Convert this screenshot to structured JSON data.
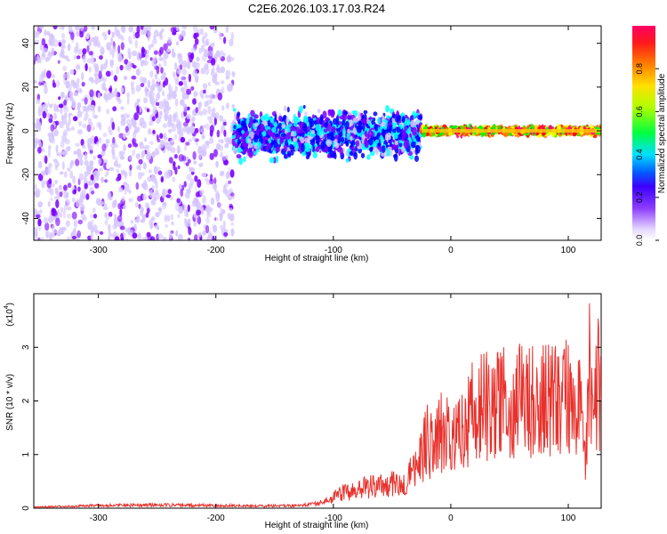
{
  "figure": {
    "title": "C2E6.2026.103.17.03.R24"
  },
  "chart_data": [
    {
      "type": "heatmap",
      "name": "spectrogram",
      "title": "C2E6.2026.103.17.03.R24",
      "xlabel": "Height of straight line (km)",
      "ylabel": "Frequency (Hz)",
      "xlim": [
        -355,
        128
      ],
      "ylim": [
        -50,
        48
      ],
      "xticks": [
        -300,
        -200,
        -100,
        0,
        100
      ],
      "yticks": [
        -40,
        -20,
        0,
        20,
        40
      ],
      "colorbar": {
        "label": "Normalized spectral amplitude",
        "range": [
          0,
          1
        ],
        "ticks": [
          0.0,
          0.2,
          0.4,
          0.6,
          0.8
        ],
        "colormap": [
          "#ffffff",
          "#d6c7ff",
          "#7a00ff",
          "#0000ff",
          "#00ffff",
          "#00ff00",
          "#ffff00",
          "#ff8000",
          "#ff0000",
          "#ff0080"
        ]
      },
      "description_regions": [
        {
          "x_range": [
            -355,
            -185
          ],
          "f_range": [
            -50,
            48
          ],
          "amplitude": [
            0.05,
            0.2
          ],
          "density": "scattered"
        },
        {
          "x_range": [
            -185,
            -25
          ],
          "f_range": [
            -15,
            12
          ],
          "amplitude": [
            0.1,
            0.5
          ],
          "density": "dense"
        },
        {
          "x_range": [
            -25,
            128
          ],
          "f_range": [
            -2,
            2
          ],
          "amplitude": [
            0.5,
            1.0
          ],
          "density": "narrow band"
        }
      ]
    },
    {
      "type": "line",
      "name": "snr",
      "xlabel": "Height of straight line (km)",
      "ylabel": "SNR (10 * v/v)",
      "yscale_label": "(x10",
      "yscale_exponent": "4",
      "xlim": [
        -355,
        128
      ],
      "ylim": [
        0,
        4
      ],
      "xticks": [
        -300,
        -200,
        -100,
        0,
        100
      ],
      "yticks": [
        0,
        1,
        2,
        3
      ],
      "color": "#e8312c",
      "x": [
        -355,
        -300,
        -250,
        -200,
        -160,
        -130,
        -110,
        -90,
        -70,
        -50,
        -40,
        -30,
        -25,
        -20,
        -15,
        -10,
        -5,
        0,
        10,
        20,
        30,
        40,
        50,
        60,
        70,
        80,
        90,
        100,
        105,
        110,
        112,
        115,
        118,
        120,
        125,
        128
      ],
      "y": [
        0.02,
        0.05,
        0.06,
        0.05,
        0.04,
        0.05,
        0.1,
        0.3,
        0.4,
        0.45,
        0.5,
        0.7,
        1.0,
        1.3,
        1.1,
        1.4,
        1.5,
        1.5,
        1.6,
        1.8,
        1.9,
        1.95,
        1.95,
        2.0,
        2.0,
        2.05,
        2.0,
        2.05,
        2.1,
        1.9,
        1.5,
        0.8,
        2.5,
        2.2,
        2.4,
        2.0
      ]
    }
  ]
}
